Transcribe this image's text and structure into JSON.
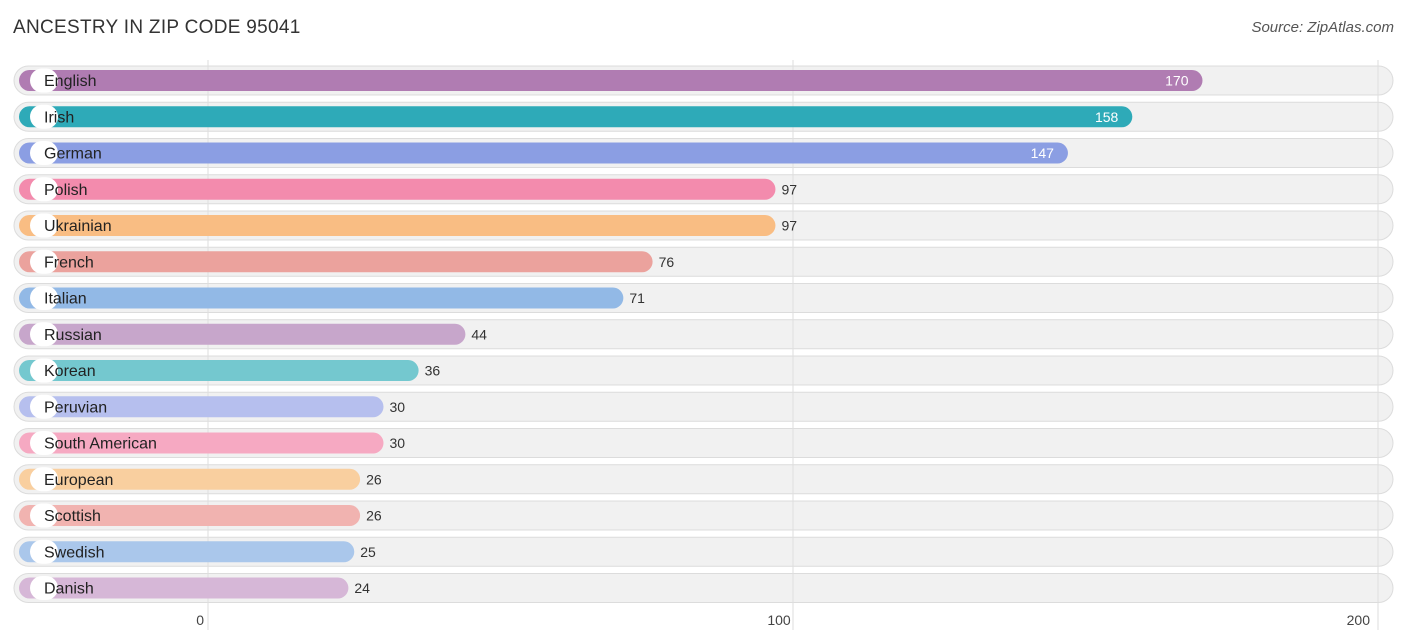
{
  "header": {
    "title": "ANCESTRY IN ZIP CODE 95041",
    "source": "Source: ZipAtlas.com"
  },
  "chart_data": {
    "type": "bar",
    "orientation": "horizontal",
    "title": "ANCESTRY IN ZIP CODE 95041",
    "categories": [
      "English",
      "Irish",
      "German",
      "Polish",
      "Ukrainian",
      "French",
      "Italian",
      "Russian",
      "Korean",
      "Peruvian",
      "South American",
      "European",
      "Scottish",
      "Swedish",
      "Danish"
    ],
    "values": [
      170,
      158,
      147,
      97,
      97,
      76,
      71,
      44,
      36,
      30,
      30,
      26,
      26,
      25,
      24
    ],
    "colors": [
      "#b07cb2",
      "#2eaab8",
      "#8b9ee3",
      "#f38bad",
      "#f9bd83",
      "#eba29d",
      "#92b9e6",
      "#c7a6cb",
      "#74c8cf",
      "#b6bfee",
      "#f6a9c2",
      "#f9cf9f",
      "#f1b3b0",
      "#aac7eb",
      "#d6b7d7"
    ],
    "xlim": [
      0,
      200
    ],
    "xticks": [
      0,
      100,
      200
    ],
    "grid": true,
    "values_inside_bar": [
      true,
      true,
      true,
      false,
      false,
      false,
      false,
      false,
      false,
      false,
      false,
      false,
      false,
      false,
      false
    ]
  }
}
